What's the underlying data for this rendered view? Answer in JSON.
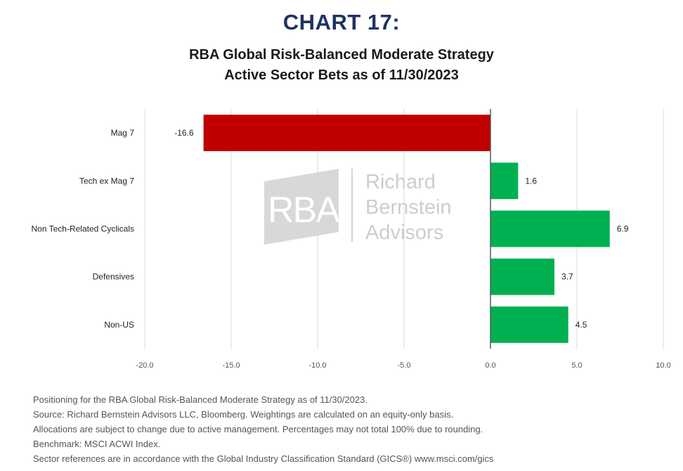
{
  "header": {
    "chart_number": "CHART 17:",
    "subtitle_line1": "RBA Global Risk-Balanced Moderate Strategy",
    "subtitle_line2": "Active Sector Bets as of 11/30/2023"
  },
  "watermark": {
    "logo_text": "RBA",
    "name_lines": [
      "Richard",
      "Bernstein",
      "Advisors"
    ]
  },
  "chart_data": {
    "type": "bar",
    "orientation": "horizontal",
    "categories": [
      "Mag 7",
      "Tech ex Mag 7",
      "Non Tech-Related Cyclicals",
      "Defensives",
      "Non-US"
    ],
    "values": [
      -16.6,
      1.6,
      6.9,
      3.7,
      4.5
    ],
    "data_labels": [
      "-16.6",
      "1.6",
      "6.9",
      "3.7",
      "4.5"
    ],
    "xlim": [
      -20,
      10
    ],
    "x_ticks": [
      -20,
      -15,
      -10,
      -5,
      0,
      5,
      10
    ],
    "x_tick_labels": [
      "-20.0",
      "-15.0",
      "-10.0",
      "-5.0",
      "0.0",
      "5.0",
      "10.0"
    ],
    "grid": "vertical",
    "legend": "none",
    "colors": {
      "negative": "#c00000",
      "positive": "#00b050"
    }
  },
  "footnotes": [
    "Positioning for the RBA Global Risk-Balanced Moderate Strategy as of 11/30/2023.",
    "Source: Richard Bernstein Advisors LLC, Bloomberg. Weightings are calculated on an equity-only basis.",
    "Allocations are subject to change due to active management. Percentages may not total 100% due to rounding.",
    "Benchmark: MSCI ACWI Index.",
    "Sector references are in accordance with the Global Industry Classification Standard (GICS®) www.msci.com/gics"
  ]
}
